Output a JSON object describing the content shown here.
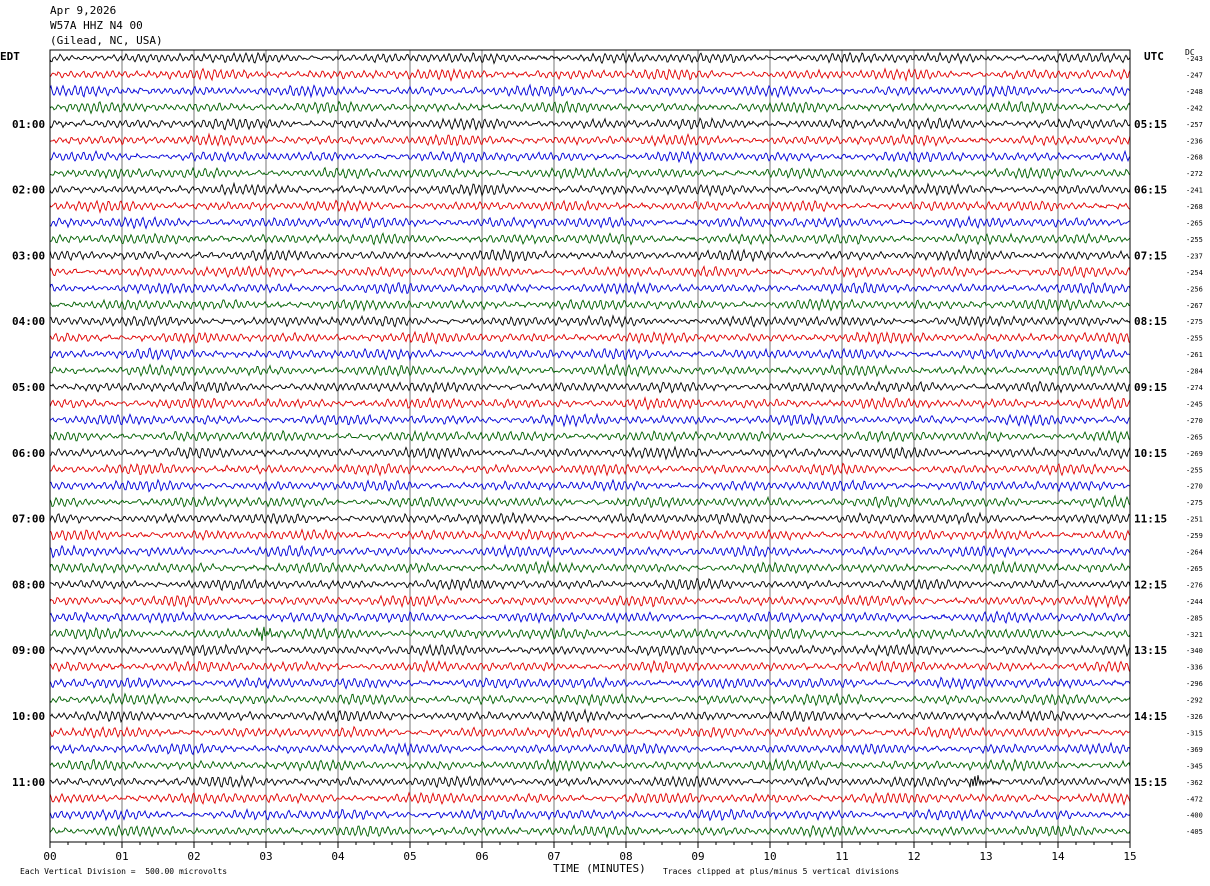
{
  "header": {
    "date": "Apr 9,2026",
    "station": "W57A HHZ N4 00",
    "location": "(Gilead, NC, USA)"
  },
  "left_tz": "EDT",
  "right_tz": "UTC",
  "dc_label": "DC",
  "footer": {
    "scale_note": "Each Vertical Division =  500.00 microvolts",
    "x_title": "TIME (MINUTES)",
    "clip_note": "Traces clipped at plus/minus 5 vertical divisions"
  },
  "chart_data": {
    "type": "line",
    "title": "",
    "xlabel": "TIME (MINUTES)",
    "x_ticks": [
      "00",
      "01",
      "02",
      "03",
      "04",
      "05",
      "06",
      "07",
      "08",
      "09",
      "10",
      "11",
      "12",
      "13",
      "14",
      "15"
    ],
    "xlim": [
      0,
      15
    ],
    "grid": "vertical lines at each minute",
    "trace_colors": [
      "#000000",
      "#e00000",
      "#0000d8",
      "#006000"
    ],
    "left_hour_labels": [
      "01:00",
      "02:00",
      "03:00",
      "04:00",
      "05:00",
      "06:00",
      "07:00",
      "08:00",
      "09:00",
      "10:00",
      "11:00"
    ],
    "right_hour_labels": [
      "05:15",
      "06:15",
      "07:15",
      "08:15",
      "09:15",
      "10:15",
      "11:15",
      "12:15",
      "13:15",
      "14:15",
      "15:15"
    ],
    "dc_offsets": [
      "-243",
      "-247",
      "-248",
      "-242",
      "-257",
      "-236",
      "-268",
      "-272",
      "-241",
      "-268",
      "-265",
      "-255",
      "-237",
      "-254",
      "-256",
      "-267",
      "-275",
      "-255",
      "-261",
      "-284",
      "-274",
      "-245",
      "-270",
      "-265",
      "-269",
      "-255",
      "-270",
      "-275",
      "-251",
      "-259",
      "-264",
      "-265",
      "-276",
      "-244",
      "-285",
      "-321",
      "-340",
      "-336",
      "-296",
      "-292",
      "-326",
      "-315",
      "-369",
      "-345",
      "-362",
      "-472",
      "-400",
      "-405"
    ],
    "events": [
      {
        "row": 35,
        "minute": 2.95,
        "note": "burst"
      },
      {
        "row": 44,
        "minute": 12.85,
        "note": "burst"
      }
    ]
  }
}
